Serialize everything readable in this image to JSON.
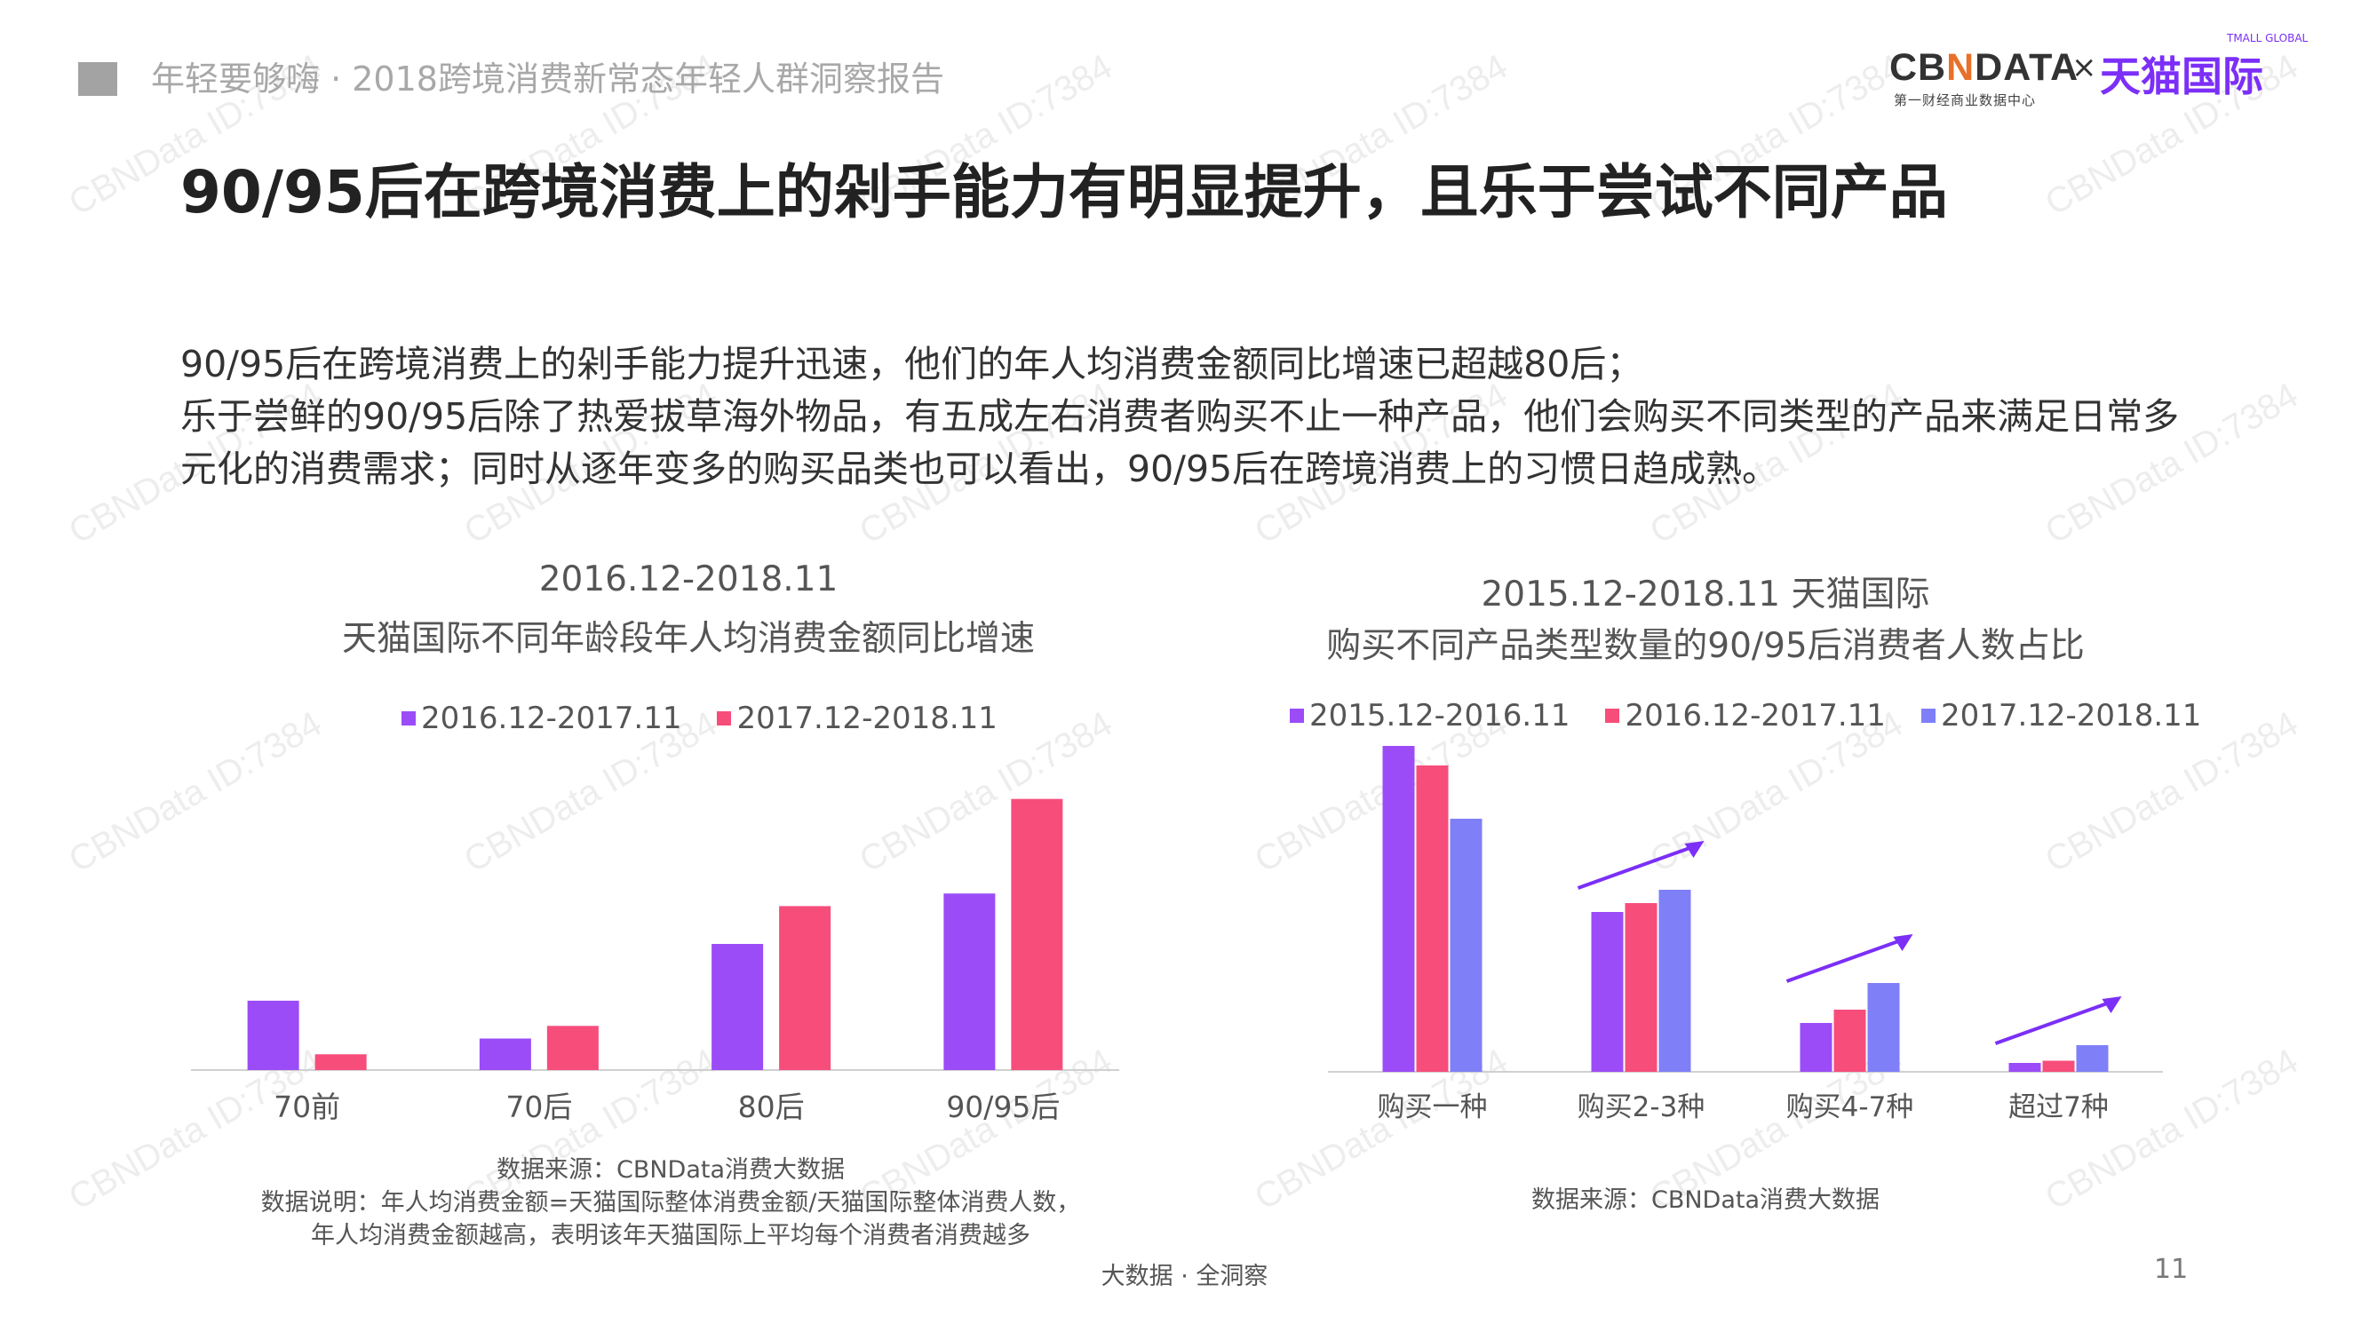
{
  "header": {
    "subtitle": "年轻要够嗨 · 2018跨境消费新常态年轻人群洞察报告"
  },
  "logo": {
    "cbn_left": "CB",
    "cbn_x": "N",
    "cbn_right": "DATA",
    "times": "×",
    "tmall": "天猫国际",
    "tmall_global": "TMALL GLOBAL",
    "cn_sub": "第一财经商业数据中心"
  },
  "page_title": "90/95后在跨境消费上的剁手能力有明显提升，且乐于尝试不同产品",
  "intro": {
    "line1": "90/95后在跨境消费上的剁手能力提升迅速，他们的年人均消费金额同比增速已超越80后；",
    "line2": "乐于尝鲜的90/95后除了热爱拔草海外物品，有五成左右消费者购买不止一种产品，他们会购买不同类型的产品来满足日常多元化的消费需求；同时从逐年变多的购买品类也可以看出，90/95后在跨境消费上的习惯日趋成熟。"
  },
  "chart_data": [
    {
      "type": "bar",
      "title": "2016.12-2018.11",
      "subtitle": "天猫国际不同年龄段年人均消费金额同比增速",
      "categories": [
        "70前",
        "70后",
        "80后",
        "90/95后"
      ],
      "series": [
        {
          "name": "2016.12-2017.11",
          "color": "#9b4cf7",
          "values": [
            0.22,
            0.1,
            0.4,
            0.56
          ]
        },
        {
          "name": "2017.12-2018.11",
          "color": "#f74d7b",
          "values": [
            0.05,
            0.14,
            0.52,
            0.86
          ]
        }
      ],
      "ylim": [
        0,
        1
      ],
      "grid": false,
      "legend": "top",
      "source": "数据来源：CBNData消费大数据",
      "note_line1": "数据说明：年人均消费金额=天猫国际整体消费金额/天猫国际整体消费人数，",
      "note_line2": "年人均消费金额越高，表明该年天猫国际上平均每个消费者消费越多"
    },
    {
      "type": "bar",
      "title": "2015.12-2018.11 天猫国际",
      "subtitle": "购买不同产品类型数量的90/95后消费者人数占比",
      "categories": [
        "购买一种",
        "购买2-3种",
        "购买4-7种",
        "超过7种"
      ],
      "series": [
        {
          "name": "2015.12-2016.11",
          "color": "#9b4cf7",
          "values": [
            0.78,
            0.36,
            0.11,
            0.02
          ]
        },
        {
          "name": "2016.12-2017.11",
          "color": "#f74d7b",
          "values": [
            0.69,
            0.38,
            0.14,
            0.025
          ]
        },
        {
          "name": "2017.12-2018.11",
          "color": "#7f7ff7",
          "values": [
            0.57,
            0.41,
            0.2,
            0.06
          ]
        }
      ],
      "ylim": [
        0,
        0.85
      ],
      "grid": false,
      "legend": "top",
      "trend_arrow_color": "#7b2ff7",
      "source": "数据来源：CBNData消费大数据"
    }
  ],
  "footer": {
    "center": "大数据 · 全洞察",
    "page_number": "11"
  },
  "watermark": "CBNData ID:7384"
}
